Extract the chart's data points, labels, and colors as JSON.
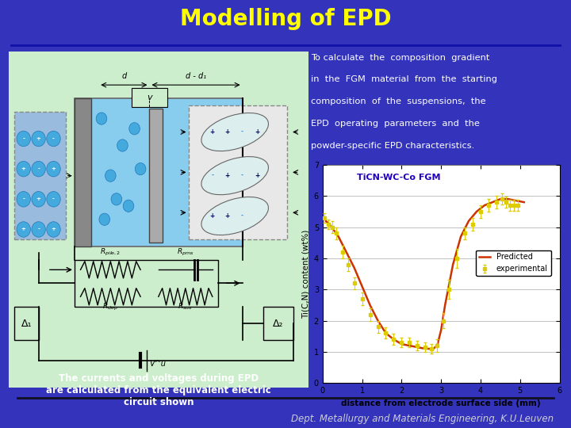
{
  "title": "Modelling of EPD",
  "title_color": "#FFFF00",
  "bg_color": "#3333BB",
  "footer_text": "Dept. Metallurgy and Materials Engineering, K.U.Leuven",
  "footer_color": "#CCCCDD",
  "content_bg": "#CCEECC",
  "right_text_lines": [
    "To calculate  the  composition  gradient",
    "in  the  FGM  material  from  the  starting",
    "composition  of  the  suspensions,  the",
    "EPD  operating  parameters  and  the",
    "powder-specific EPD characteristics."
  ],
  "right_text_color": "#FFFFFF",
  "caption_text": "The currents and voltages during EPD\nare calculated from the equivalent electric\ncircuit shown",
  "caption_color": "#000000",
  "plot_title": "TiCN-WC-Co FGM",
  "plot_xlabel": "distance from electrode surface side (mm)",
  "plot_ylabel": "Ti(C,N) content (wt%)",
  "exp_x": [
    0.05,
    0.15,
    0.25,
    0.35,
    0.5,
    0.65,
    0.8,
    1.0,
    1.2,
    1.4,
    1.6,
    1.8,
    2.0,
    2.2,
    2.4,
    2.6,
    2.75,
    2.9,
    3.05,
    3.2,
    3.4,
    3.6,
    3.8,
    4.0,
    4.2,
    4.4,
    4.55,
    4.65,
    4.75,
    4.85,
    4.95
  ],
  "exp_y": [
    5.3,
    5.1,
    5.0,
    4.8,
    4.2,
    3.8,
    3.2,
    2.7,
    2.2,
    1.8,
    1.6,
    1.4,
    1.3,
    1.3,
    1.2,
    1.15,
    1.1,
    1.2,
    2.0,
    3.0,
    4.0,
    4.8,
    5.1,
    5.5,
    5.7,
    5.8,
    5.9,
    5.8,
    5.7,
    5.7,
    5.7
  ],
  "exp_err": [
    0.15,
    0.15,
    0.2,
    0.2,
    0.2,
    0.2,
    0.2,
    0.2,
    0.2,
    0.18,
    0.18,
    0.18,
    0.15,
    0.15,
    0.15,
    0.15,
    0.15,
    0.2,
    0.25,
    0.3,
    0.3,
    0.2,
    0.2,
    0.2,
    0.2,
    0.2,
    0.18,
    0.18,
    0.18,
    0.18,
    0.18
  ],
  "pred_x": [
    0.0,
    0.2,
    0.4,
    0.6,
    0.8,
    1.0,
    1.2,
    1.4,
    1.6,
    1.8,
    2.0,
    2.2,
    2.4,
    2.6,
    2.8,
    2.9,
    3.0,
    3.1,
    3.3,
    3.5,
    3.7,
    3.9,
    4.1,
    4.3,
    4.5,
    4.7,
    4.9,
    5.1
  ],
  "pred_y": [
    5.3,
    5.05,
    4.7,
    4.2,
    3.7,
    3.1,
    2.5,
    2.0,
    1.6,
    1.4,
    1.25,
    1.2,
    1.15,
    1.1,
    1.1,
    1.2,
    1.7,
    2.5,
    3.8,
    4.7,
    5.2,
    5.5,
    5.7,
    5.8,
    5.9,
    5.9,
    5.85,
    5.8
  ],
  "exp_color": "#DDCC00",
  "pred_color": "#CC3300",
  "plot_ylim": [
    0,
    7
  ],
  "plot_xlim": [
    0,
    6
  ],
  "plot_yticks": [
    0,
    1,
    2,
    3,
    4,
    5,
    6,
    7
  ],
  "plot_xticks": [
    0,
    1,
    2,
    3,
    4,
    5,
    6
  ]
}
